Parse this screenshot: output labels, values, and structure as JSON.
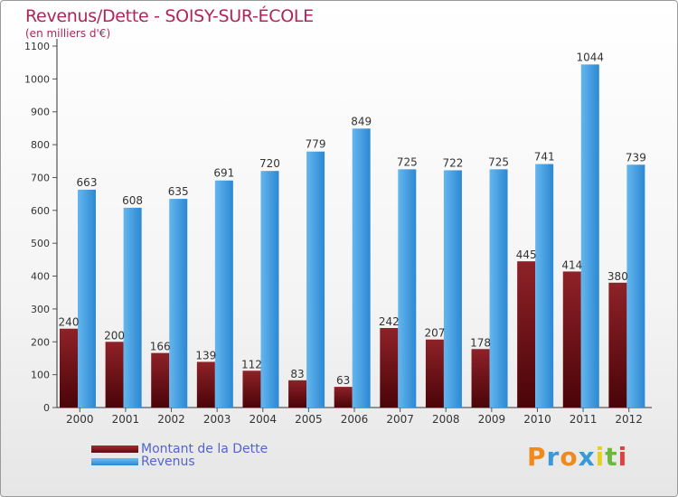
{
  "header": {
    "title": "Revenus/Dette - SOISY-SUR-ÉCOLE",
    "subtitle": "(en milliers d'€)"
  },
  "colors": {
    "dette": "#8b1a1f",
    "revenus": "#3e9ee0",
    "axis_text": "#333333",
    "grid": "#cccccc",
    "legend_text": "#5563d0",
    "title": "#b0245a"
  },
  "legend": {
    "dette_label": "Montant de la Dette",
    "revenus_label": "Revenus"
  },
  "logo": {
    "text": "Proxiti",
    "letters": [
      {
        "char": "P",
        "color": "#f08a1c"
      },
      {
        "char": "r",
        "color": "#3a9ad9"
      },
      {
        "char": "o",
        "color": "#f08a1c"
      },
      {
        "char": "x",
        "color": "#3a9ad9"
      },
      {
        "char": "i",
        "color": "#e8d020"
      },
      {
        "char": "t",
        "color": "#6cb83a"
      },
      {
        "char": "i",
        "color": "#e04040"
      }
    ]
  },
  "chart_data": {
    "type": "bar",
    "title": "Revenus/Dette - SOISY-SUR-ÉCOLE",
    "subtitle": "(en milliers d'€)",
    "categories": [
      "2000",
      "2001",
      "2002",
      "2003",
      "2004",
      "2005",
      "2006",
      "2007",
      "2008",
      "2009",
      "2010",
      "2011",
      "2012"
    ],
    "series": [
      {
        "name": "Montant de la Dette",
        "values": [
          240,
          200,
          166,
          139,
          112,
          83,
          63,
          242,
          207,
          178,
          445,
          414,
          380
        ]
      },
      {
        "name": "Revenus",
        "values": [
          663,
          608,
          635,
          691,
          720,
          779,
          849,
          725,
          722,
          725,
          741,
          1044,
          739
        ]
      }
    ],
    "ylim": [
      0,
      1100
    ],
    "yticks": [
      0,
      100,
      200,
      300,
      400,
      500,
      600,
      700,
      800,
      900,
      1000,
      1100
    ],
    "grid": true,
    "legend_position": "bottom-left"
  }
}
